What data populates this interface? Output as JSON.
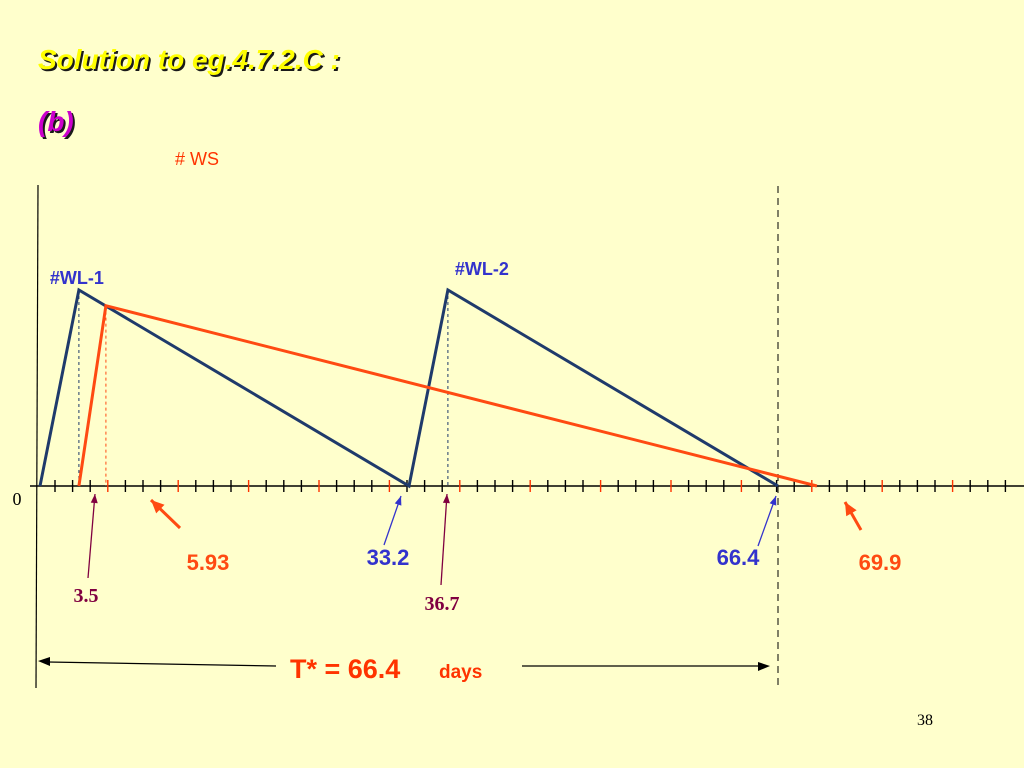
{
  "slide": {
    "title": "Solution to eg.4.7.2.C :",
    "subtitle": "(b)",
    "page_number": "38"
  },
  "chart_data": {
    "type": "line",
    "ylabel": "# WS",
    "origin_label": "0",
    "x_unit": "days",
    "series": [
      {
        "name": "#WL-1",
        "color": "#1f3a6b",
        "points": [
          [
            0,
            0
          ],
          [
            3.5,
            1
          ],
          [
            33.2,
            0
          ],
          [
            36.7,
            1
          ],
          [
            66.4,
            0
          ]
        ]
      },
      {
        "color": "#ff4a12",
        "points": [
          [
            3.5,
            0
          ],
          [
            5.93,
            0.92
          ],
          [
            69.9,
            0
          ]
        ]
      }
    ],
    "peak_labels": [
      {
        "text": "#WL-1",
        "x": 3.5,
        "color": "#3333cc"
      },
      {
        "text": "#WL-2",
        "x": 36.7,
        "color": "#3333cc"
      }
    ],
    "x_annotations": [
      {
        "text": "3.5",
        "x": 3.5,
        "color": "#800040",
        "font": "serif"
      },
      {
        "text": "5.93",
        "x": 5.93,
        "color": "#ff4a12",
        "font": "sans"
      },
      {
        "text": "33.2",
        "x": 33.2,
        "color": "#3333cc",
        "font": "sans"
      },
      {
        "text": "36.7",
        "x": 36.7,
        "color": "#800040",
        "font": "serif"
      },
      {
        "text": "66.4",
        "x": 66.4,
        "color": "#3333cc",
        "font": "sans"
      },
      {
        "text": "69.9",
        "x": 69.9,
        "color": "#ff4a12",
        "font": "sans"
      }
    ],
    "period": {
      "value_text": "T* = 66.4",
      "unit_text": "days",
      "x_start": 0,
      "x_end": 66.4,
      "color": "#ff3300"
    },
    "xlim": [
      0,
      84
    ],
    "ylim": [
      0,
      1
    ]
  }
}
